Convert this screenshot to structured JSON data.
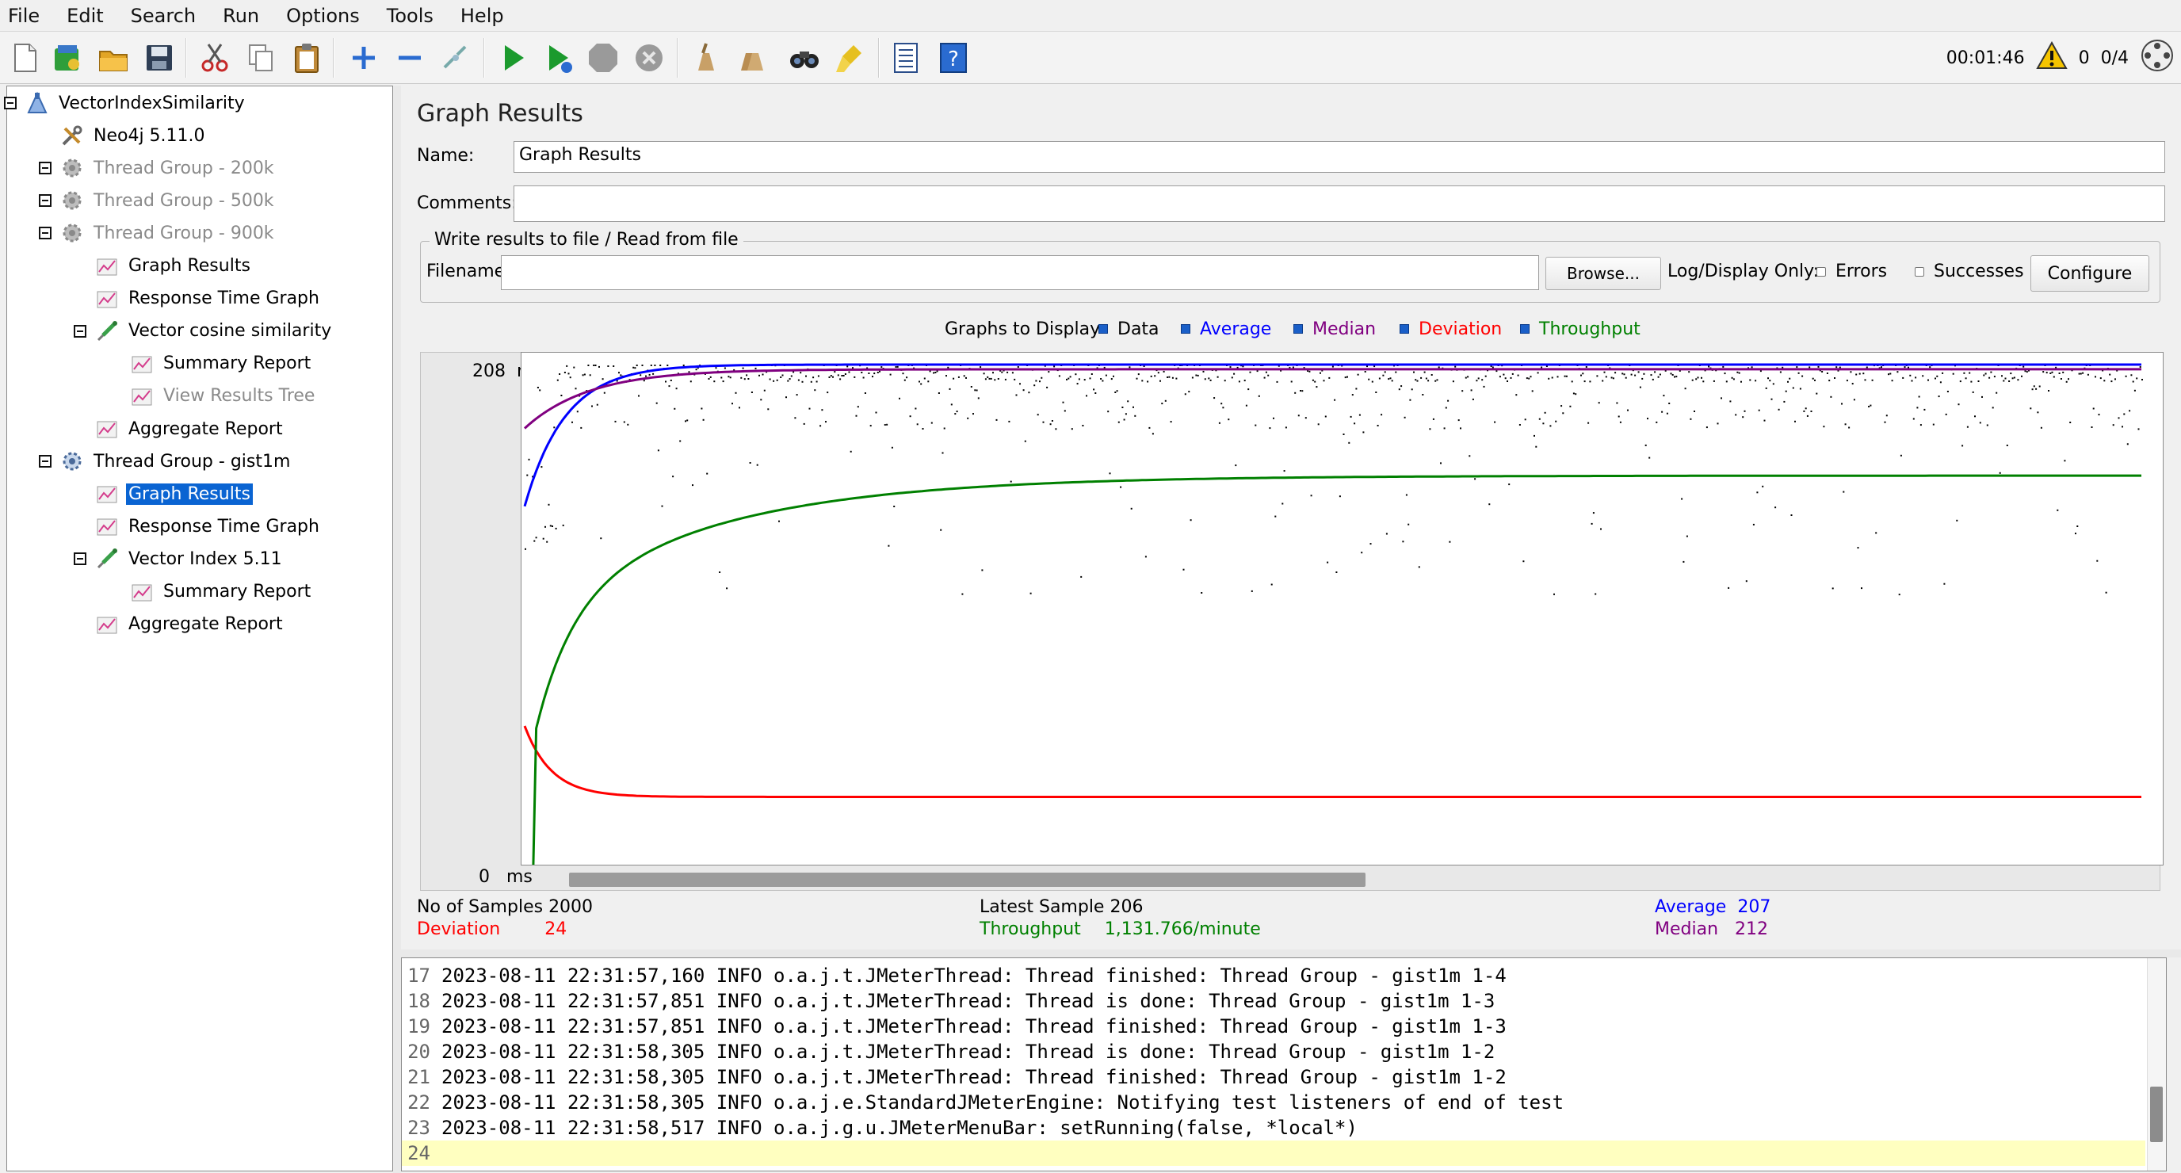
{
  "menu": [
    "File",
    "Edit",
    "Search",
    "Run",
    "Options",
    "Tools",
    "Help"
  ],
  "status": {
    "elapsed": "00:01:46",
    "warnings": "0",
    "threads": "0/4"
  },
  "tree": [
    {
      "label": "VectorIndexSimilarity",
      "name": "tree-node-test-plan",
      "icon": "test-plan-icon"
    },
    {
      "label": "Neo4j 5.11.0",
      "name": "tree-node-neo4j-config",
      "icon": "config-element-icon"
    },
    {
      "label": "Thread Group - 200k",
      "name": "tree-node-thread-group-200k",
      "icon": "thread-group-icon",
      "disabled": true
    },
    {
      "label": "Thread Group - 500k",
      "name": "tree-node-thread-group-500k",
      "icon": "thread-group-icon",
      "disabled": true
    },
    {
      "label": "Thread Group - 900k",
      "name": "tree-node-thread-group-900k",
      "icon": "thread-group-icon",
      "disabled": true
    },
    {
      "label": "Graph Results",
      "name": "tree-node-graph-results-1",
      "icon": "listener-icon"
    },
    {
      "label": "Response Time Graph",
      "name": "tree-node-response-time-graph-1",
      "icon": "listener-icon"
    },
    {
      "label": "Vector cosine similarity",
      "name": "tree-node-vector-cosine-similarity",
      "icon": "sampler-icon"
    },
    {
      "label": "Summary Report",
      "name": "tree-node-summary-report-1",
      "icon": "listener-icon"
    },
    {
      "label": "View Results Tree",
      "name": "tree-node-view-results-tree",
      "icon": "listener-icon",
      "disabled": true
    },
    {
      "label": "Aggregate Report",
      "name": "tree-node-aggregate-report-1",
      "icon": "listener-icon"
    },
    {
      "label": "Thread Group - gist1m",
      "name": "tree-node-thread-group-gist1m",
      "icon": "thread-group-icon"
    },
    {
      "label": "Graph Results",
      "name": "tree-node-graph-results-2",
      "icon": "listener-icon",
      "selected": true
    },
    {
      "label": "Response Time Graph",
      "name": "tree-node-response-time-graph-2",
      "icon": "listener-icon"
    },
    {
      "label": "Vector Index 5.11",
      "name": "tree-node-vector-index-511",
      "icon": "sampler-icon"
    },
    {
      "label": "Summary Report",
      "name": "tree-node-summary-report-2",
      "icon": "listener-icon"
    },
    {
      "label": "Aggregate Report",
      "name": "tree-node-aggregate-report-2",
      "icon": "listener-icon"
    }
  ],
  "panel": {
    "title": "Graph Results",
    "name_label": "Name:",
    "name_value": "Graph Results",
    "comments_label": "Comments:",
    "comments_value": "",
    "file_group_title": "Write results to file / Read from file",
    "filename_label": "Filename",
    "filename_value": "",
    "browse_label": "Browse...",
    "log_display_label": "Log/Display Only:",
    "errors_label": "Errors",
    "successes_label": "Successes",
    "configure_label": "Configure"
  },
  "legend": {
    "title": "Graphs to Display",
    "items": [
      {
        "label": "Data",
        "color": "#000000"
      },
      {
        "label": "Average",
        "color": "#0000ff"
      },
      {
        "label": "Median",
        "color": "#800080"
      },
      {
        "label": "Deviation",
        "color": "#ff0000"
      },
      {
        "label": "Throughput",
        "color": "#008000"
      }
    ]
  },
  "graph": {
    "y_top_label": "208",
    "y_bottom_label": "0",
    "y_unit": "ms"
  },
  "chart_data": {
    "type": "scatter",
    "ylim": [
      0,
      208
    ],
    "y_unit": "ms",
    "x_samples": 2000,
    "series": [
      {
        "name": "Data",
        "color": "#000000"
      },
      {
        "name": "Average",
        "color": "#0000ff",
        "final_value": 207
      },
      {
        "name": "Median",
        "color": "#800080",
        "final_value": 212
      },
      {
        "name": "Deviation",
        "color": "#ff0000",
        "final_value": 24
      },
      {
        "name": "Throughput",
        "color": "#008000",
        "final_value": "1,131.766/minute"
      }
    ]
  },
  "stats": {
    "samples_label": "No of Samples",
    "samples_value": "2000",
    "latest_label": "Latest Sample",
    "latest_value": "206",
    "average_label": "Average",
    "average_value": "207",
    "deviation_label": "Deviation",
    "deviation_value": "24",
    "throughput_label": "Throughput",
    "throughput_value": "1,131.766/minute",
    "median_label": "Median",
    "median_value": "212"
  },
  "log": [
    {
      "n": "17",
      "text": "2023-08-11 22:31:57,160 INFO o.a.j.t.JMeterThread: Thread finished: Thread Group - gist1m 1-4"
    },
    {
      "n": "18",
      "text": "2023-08-11 22:31:57,851 INFO o.a.j.t.JMeterThread: Thread is done: Thread Group - gist1m 1-3"
    },
    {
      "n": "19",
      "text": "2023-08-11 22:31:57,851 INFO o.a.j.t.JMeterThread: Thread finished: Thread Group - gist1m 1-3"
    },
    {
      "n": "20",
      "text": "2023-08-11 22:31:58,305 INFO o.a.j.t.JMeterThread: Thread is done: Thread Group - gist1m 1-2"
    },
    {
      "n": "21",
      "text": "2023-08-11 22:31:58,305 INFO o.a.j.t.JMeterThread: Thread finished: Thread Group - gist1m 1-2"
    },
    {
      "n": "22",
      "text": "2023-08-11 22:31:58,305 INFO o.a.j.e.StandardJMeterEngine: Notifying test listeners of end of test"
    },
    {
      "n": "23",
      "text": "2023-08-11 22:31:58,517 INFO o.a.j.g.u.JMeterMenuBar: setRunning(false, *local*)"
    },
    {
      "n": "24",
      "text": ""
    }
  ]
}
